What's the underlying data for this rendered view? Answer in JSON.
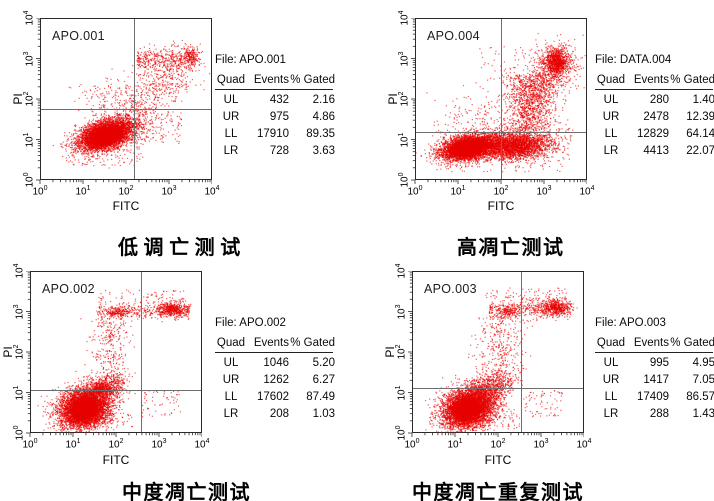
{
  "figure": {
    "background": "#ffffff",
    "dot_color": "#e60000",
    "frame_color": "#2a2a2a",
    "quad_line_color": "#6e6e6e"
  },
  "panels": [
    {
      "label": "APO.001",
      "title": "低 调 亡 测 试",
      "xlabel": "FITC",
      "ylabel": "PI",
      "table": {
        "file_label": "File: APO.001",
        "headers": [
          "Quad",
          "Events",
          "% Gated"
        ],
        "rows": [
          {
            "quad": "UL",
            "events": "432",
            "gated": "2.16"
          },
          {
            "quad": "UR",
            "events": "975",
            "gated": "4.86"
          },
          {
            "quad": "LL",
            "events": "17910",
            "gated": "89.35"
          },
          {
            "quad": "LR",
            "events": "728",
            "gated": "3.63"
          }
        ]
      }
    },
    {
      "label": "APO.004",
      "title": "高凋亡测试",
      "xlabel": "FITC",
      "ylabel": "PI",
      "table": {
        "file_label": "File: DATA.004",
        "headers": [
          "Quad",
          "Events",
          "% Gated"
        ],
        "rows": [
          {
            "quad": "UL",
            "events": "280",
            "gated": "1.40"
          },
          {
            "quad": "UR",
            "events": "2478",
            "gated": "12.39"
          },
          {
            "quad": "LL",
            "events": "12829",
            "gated": "64.14"
          },
          {
            "quad": "LR",
            "events": "4413",
            "gated": "22.07"
          }
        ]
      }
    },
    {
      "label": "APO.002",
      "title": "中度凋亡测试",
      "xlabel": "FITC",
      "ylabel": "PI",
      "table": {
        "file_label": "File: APO.002",
        "headers": [
          "Quad",
          "Events",
          "% Gated"
        ],
        "rows": [
          {
            "quad": "UL",
            "events": "1046",
            "gated": "5.20"
          },
          {
            "quad": "UR",
            "events": "1262",
            "gated": "6.27"
          },
          {
            "quad": "LL",
            "events": "17602",
            "gated": "87.49"
          },
          {
            "quad": "LR",
            "events": "208",
            "gated": "1.03"
          }
        ]
      }
    },
    {
      "label": "APO.003",
      "title": "中度凋亡重复测试",
      "xlabel": "FITC",
      "ylabel": "PI",
      "table": {
        "file_label": "File: APO.003",
        "headers": [
          "Quad",
          "Events",
          "% Gated"
        ],
        "rows": [
          {
            "quad": "UL",
            "events": "995",
            "gated": "4.95"
          },
          {
            "quad": "UR",
            "events": "1417",
            "gated": "7.05"
          },
          {
            "quad": "LL",
            "events": "17409",
            "gated": "86.57"
          },
          {
            "quad": "LR",
            "events": "288",
            "gated": "1.43"
          }
        ]
      }
    }
  ],
  "chart_data": [
    {
      "type": "scatter",
      "title": "低 调 亡 测 试",
      "file": "APO.001",
      "xlabel": "FITC",
      "ylabel": "PI",
      "scale": "log",
      "xlim_log": [
        0,
        4
      ],
      "ylim_log": [
        0,
        4
      ],
      "tick_exponents": [
        0,
        1,
        2,
        3,
        4
      ],
      "quadrant_gates_log": {
        "x": 2.16,
        "y": 1.78
      },
      "quadrant_stats": {
        "UL": {
          "events": 432,
          "pct": 2.16
        },
        "UR": {
          "events": 975,
          "pct": 4.86
        },
        "LL": {
          "events": 17910,
          "pct": 89.35
        },
        "LR": {
          "events": 728,
          "pct": 3.63
        }
      },
      "clusters": [
        {
          "type": "gauss",
          "n": 4800,
          "cx": 1.55,
          "cy": 1.12,
          "sx": 0.34,
          "sy": 0.17,
          "rot": 18
        },
        {
          "type": "gauss",
          "n": 2200,
          "cx": 1.5,
          "cy": 1.06,
          "sx": 0.19,
          "sy": 0.1,
          "rot": 18
        },
        {
          "type": "line",
          "n": 650,
          "x1": 1.9,
          "y1": 1.4,
          "x2": 3.35,
          "y2": 2.95,
          "s": 0.3
        },
        {
          "type": "hband",
          "n": 420,
          "xmin": 2.25,
          "xmax": 3.65,
          "cy": 2.97,
          "sy": 0.15
        },
        {
          "type": "gauss",
          "n": 140,
          "cx": 3.5,
          "cy": 3.08,
          "sx": 0.1,
          "sy": 0.1,
          "rot": 0
        },
        {
          "type": "gauss",
          "n": 130,
          "cx": 1.55,
          "cy": 2.05,
          "sx": 0.4,
          "sy": 0.28,
          "rot": 0
        },
        {
          "type": "uniform",
          "n": 120,
          "xmin": 2.2,
          "xmax": 3.3,
          "ymin": 0.9,
          "ymax": 1.7
        },
        {
          "type": "uniform",
          "n": 120,
          "xmin": 0.6,
          "xmax": 2.4,
          "ymin": 0.35,
          "ymax": 0.9
        }
      ]
    },
    {
      "type": "scatter",
      "title": "高凋亡测试",
      "file": "DATA.004",
      "xlabel": "FITC",
      "ylabel": "PI",
      "scale": "log",
      "xlim_log": [
        0,
        4
      ],
      "ylim_log": [
        0,
        4
      ],
      "tick_exponents": [
        0,
        1,
        2,
        3,
        4
      ],
      "quadrant_gates_log": {
        "x": 1.97,
        "y": 1.21
      },
      "quadrant_stats": {
        "UL": {
          "events": 280,
          "pct": 1.4
        },
        "UR": {
          "events": 2478,
          "pct": 12.39
        },
        "LL": {
          "events": 12829,
          "pct": 64.14
        },
        "LR": {
          "events": 4413,
          "pct": 22.07
        }
      },
      "clusters": [
        {
          "type": "gauss",
          "n": 4200,
          "cx": 1.25,
          "cy": 0.8,
          "sx": 0.33,
          "sy": 0.15,
          "rot": 12
        },
        {
          "type": "gauss",
          "n": 1600,
          "cx": 1.2,
          "cy": 0.78,
          "sx": 0.18,
          "sy": 0.09,
          "rot": 12
        },
        {
          "type": "gauss",
          "n": 3000,
          "cx": 2.3,
          "cy": 0.85,
          "sx": 0.45,
          "sy": 0.17,
          "rot": 4
        },
        {
          "type": "vband",
          "n": 900,
          "cx": 2.65,
          "sx": 0.28,
          "ymin": 1.25,
          "ymax": 2.6
        },
        {
          "type": "line",
          "n": 420,
          "x1": 2.7,
          "y1": 1.8,
          "x2": 3.3,
          "y2": 2.8,
          "s": 0.22
        },
        {
          "type": "gauss",
          "n": 850,
          "cx": 3.3,
          "cy": 2.92,
          "sx": 0.13,
          "sy": 0.15,
          "rot": 0
        },
        {
          "type": "gauss",
          "n": 420,
          "cx": 3.26,
          "cy": 2.84,
          "sx": 0.28,
          "sy": 0.28,
          "rot": 0
        },
        {
          "type": "gauss",
          "n": 80,
          "cx": 1.35,
          "cy": 1.7,
          "sx": 0.35,
          "sy": 0.3,
          "rot": 0
        },
        {
          "type": "uniform",
          "n": 260,
          "xmin": 0.4,
          "xmax": 3.6,
          "ymin": 0.2,
          "ymax": 1.55
        },
        {
          "type": "uniform",
          "n": 140,
          "xmin": 1.5,
          "xmax": 3.5,
          "ymin": 1.2,
          "ymax": 3.3
        }
      ]
    },
    {
      "type": "scatter",
      "title": "中度凋亡测试",
      "file": "APO.002",
      "xlabel": "FITC",
      "ylabel": "PI",
      "scale": "log",
      "xlim_log": [
        0,
        4
      ],
      "ylim_log": [
        0,
        4
      ],
      "tick_exponents": [
        0,
        1,
        2,
        3,
        4
      ],
      "quadrant_gates_log": {
        "x": 2.56,
        "y": 1.09
      },
      "quadrant_stats": {
        "UL": {
          "events": 1046,
          "pct": 5.2
        },
        "UR": {
          "events": 1262,
          "pct": 6.27
        },
        "LL": {
          "events": 17602,
          "pct": 87.49
        },
        "LR": {
          "events": 208,
          "pct": 1.03
        }
      },
      "clusters": [
        {
          "type": "gauss",
          "n": 5000,
          "cx": 1.28,
          "cy": 0.62,
          "sx": 0.3,
          "sy": 0.24,
          "rot": 25
        },
        {
          "type": "gauss",
          "n": 2000,
          "cx": 1.24,
          "cy": 0.58,
          "sx": 0.16,
          "sy": 0.13,
          "rot": 25
        },
        {
          "type": "line",
          "n": 520,
          "x1": 1.55,
          "y1": 0.95,
          "x2": 2.05,
          "y2": 1.22,
          "s": 0.16
        },
        {
          "type": "gauss",
          "n": 200,
          "cx": 1.65,
          "cy": 1.1,
          "sx": 0.12,
          "sy": 0.08,
          "rot": 10
        },
        {
          "type": "vband",
          "n": 330,
          "cx": 1.9,
          "sx": 0.24,
          "ymin": 1.2,
          "ymax": 2.85
        },
        {
          "type": "hband",
          "n": 400,
          "xmin": 1.55,
          "xmax": 3.7,
          "cy": 3.0,
          "sy": 0.1
        },
        {
          "type": "gauss",
          "n": 430,
          "cx": 3.3,
          "cy": 3.06,
          "sx": 0.17,
          "sy": 0.09,
          "rot": 0
        },
        {
          "type": "gauss",
          "n": 140,
          "cx": 2.05,
          "cy": 2.98,
          "sx": 0.13,
          "sy": 0.07,
          "rot": 0
        },
        {
          "type": "uniform",
          "n": 70,
          "xmin": 1.6,
          "xmax": 3.6,
          "ymin": 3.2,
          "ymax": 3.55
        },
        {
          "type": "uniform",
          "n": 60,
          "xmin": 2.6,
          "xmax": 3.5,
          "ymin": 0.4,
          "ymax": 1.05
        },
        {
          "type": "uniform",
          "n": 90,
          "xmin": 0.4,
          "xmax": 2.4,
          "ymin": 0.1,
          "ymax": 0.5
        }
      ]
    },
    {
      "type": "scatter",
      "title": "中度凋亡重复测试",
      "file": "APO.003",
      "xlabel": "FITC",
      "ylabel": "PI",
      "scale": "log",
      "xlim_log": [
        0,
        4
      ],
      "ylim_log": [
        0,
        4
      ],
      "tick_exponents": [
        0,
        1,
        2,
        3,
        4
      ],
      "quadrant_gates_log": {
        "x": 2.51,
        "y": 1.14
      },
      "quadrant_stats": {
        "UL": {
          "events": 995,
          "pct": 4.95
        },
        "UR": {
          "events": 1417,
          "pct": 7.05
        },
        "LL": {
          "events": 17409,
          "pct": 86.57
        },
        "LR": {
          "events": 288,
          "pct": 1.43
        }
      },
      "clusters": [
        {
          "type": "gauss",
          "n": 5000,
          "cx": 1.33,
          "cy": 0.62,
          "sx": 0.32,
          "sy": 0.24,
          "rot": 25
        },
        {
          "type": "gauss",
          "n": 2000,
          "cx": 1.28,
          "cy": 0.58,
          "sx": 0.17,
          "sy": 0.13,
          "rot": 25
        },
        {
          "type": "line",
          "n": 520,
          "x1": 1.6,
          "y1": 0.95,
          "x2": 2.15,
          "y2": 1.25,
          "s": 0.17
        },
        {
          "type": "vband",
          "n": 400,
          "cx": 2.05,
          "sx": 0.28,
          "ymin": 1.2,
          "ymax": 2.9
        },
        {
          "type": "hband",
          "n": 380,
          "xmin": 1.8,
          "xmax": 3.7,
          "cy": 3.05,
          "sy": 0.1
        },
        {
          "type": "gauss",
          "n": 480,
          "cx": 3.35,
          "cy": 3.1,
          "sx": 0.16,
          "sy": 0.1,
          "rot": 0
        },
        {
          "type": "gauss",
          "n": 150,
          "cx": 2.25,
          "cy": 3.0,
          "sx": 0.15,
          "sy": 0.08,
          "rot": 0
        },
        {
          "type": "uniform",
          "n": 80,
          "xmin": 1.7,
          "xmax": 3.6,
          "ymin": 3.25,
          "ymax": 3.6
        },
        {
          "type": "uniform",
          "n": 70,
          "xmin": 2.6,
          "xmax": 3.5,
          "ymin": 0.4,
          "ymax": 1.05
        },
        {
          "type": "uniform",
          "n": 90,
          "xmin": 0.4,
          "xmax": 2.5,
          "ymin": 0.1,
          "ymax": 0.5
        }
      ]
    }
  ]
}
